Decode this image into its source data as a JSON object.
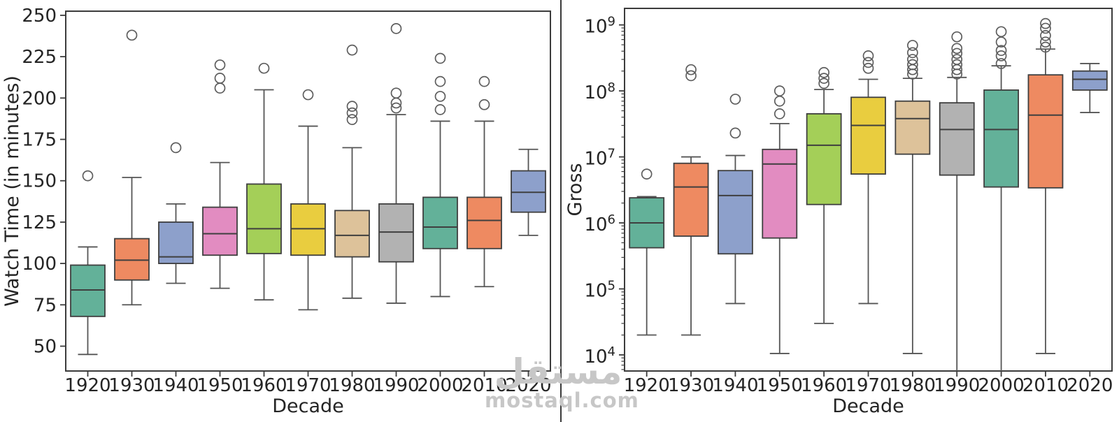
{
  "watermark": {
    "arabic": "مستقل",
    "domain": "mostaql.com"
  },
  "style": {
    "palette": [
      "#63b199",
      "#ee8a61",
      "#8da0cb",
      "#e28cc1",
      "#a4cf58",
      "#e9cd3f",
      "#ddc29a",
      "#b2b2b2",
      "#63b199",
      "#ee8a61",
      "#8da0cb"
    ],
    "box_edge": "#3f3f3f",
    "whisker": "#555555",
    "flier_edge": "#5e5e5e",
    "spine": "#3c3c3c",
    "text": "#242424"
  },
  "chart_data": [
    {
      "type": "boxplot",
      "title": "",
      "xlabel": "Decade",
      "ylabel": "Watch Time (in minutes)",
      "yscale": "linear",
      "ylim": [
        35,
        252.5
      ],
      "yticks": [
        50,
        75,
        100,
        125,
        150,
        175,
        200,
        225,
        250
      ],
      "categories": [
        "1920",
        "1930",
        "1940",
        "1950",
        "1960",
        "1970",
        "1980",
        "1990",
        "2000",
        "2010",
        "2020"
      ],
      "boxes": [
        {
          "whislo": 45,
          "q1": 68,
          "med": 84,
          "q3": 99,
          "whishi": 110,
          "fliers": [
            153
          ]
        },
        {
          "whislo": 75,
          "q1": 90,
          "med": 102,
          "q3": 115,
          "whishi": 152,
          "fliers": [
            238
          ]
        },
        {
          "whislo": 88,
          "q1": 100,
          "med": 104,
          "q3": 125,
          "whishi": 136,
          "fliers": [
            170
          ]
        },
        {
          "whislo": 85,
          "q1": 105,
          "med": 118,
          "q3": 134,
          "whishi": 161,
          "fliers": [
            206,
            212,
            220
          ]
        },
        {
          "whislo": 78,
          "q1": 106,
          "med": 121,
          "q3": 148,
          "whishi": 205,
          "fliers": [
            218
          ]
        },
        {
          "whislo": 72,
          "q1": 105,
          "med": 121,
          "q3": 136,
          "whishi": 183,
          "fliers": [
            202
          ]
        },
        {
          "whislo": 79,
          "q1": 104,
          "med": 117,
          "q3": 132,
          "whishi": 170,
          "fliers": [
            187,
            191,
            195,
            229
          ]
        },
        {
          "whislo": 76,
          "q1": 101,
          "med": 119,
          "q3": 136,
          "whishi": 190,
          "fliers": [
            194,
            197,
            203,
            242
          ]
        },
        {
          "whislo": 80,
          "q1": 109,
          "med": 122,
          "q3": 140,
          "whishi": 186,
          "fliers": [
            193,
            201,
            210,
            224
          ]
        },
        {
          "whislo": 86,
          "q1": 109,
          "med": 126,
          "q3": 140,
          "whishi": 186,
          "fliers": [
            196,
            210
          ]
        },
        {
          "whislo": 117,
          "q1": 131,
          "med": 143,
          "q3": 156,
          "whishi": 169,
          "fliers": []
        }
      ]
    },
    {
      "type": "boxplot",
      "title": "",
      "xlabel": "Decade",
      "ylabel": "Gross",
      "yscale": "log",
      "ylim": [
        5700,
        1780000000.0
      ],
      "yticks": [
        10000.0,
        100000.0,
        1000000.0,
        10000000.0,
        100000000.0,
        1000000000.0
      ],
      "categories": [
        "1920",
        "1930",
        "1940",
        "1950",
        "1960",
        "1970",
        "1980",
        "1990",
        "2000",
        "2010",
        "2020"
      ],
      "boxes": [
        {
          "whislo": 20000.0,
          "q1": 420000.0,
          "med": 1000000.0,
          "q3": 2400000.0,
          "whishi": 2500000.0,
          "fliers": [
            5500000.0
          ]
        },
        {
          "whislo": 20000.0,
          "q1": 630000.0,
          "med": 3500000.0,
          "q3": 8000000.0,
          "whishi": 10000000.0,
          "fliers": [
            170000000.0,
            210000000.0
          ]
        },
        {
          "whislo": 60000.0,
          "q1": 340000.0,
          "med": 2600000.0,
          "q3": 6200000.0,
          "whishi": 10500000.0,
          "fliers": [
            23000000.0,
            75000000.0
          ]
        },
        {
          "whislo": 10500.0,
          "q1": 590000.0,
          "med": 7800000.0,
          "q3": 13000000.0,
          "whishi": 32000000.0,
          "fliers": [
            45000000.0,
            70000000.0,
            100000000.0
          ]
        },
        {
          "whislo": 30000.0,
          "q1": 1900000.0,
          "med": 15000000.0,
          "q3": 45000000.0,
          "whishi": 105000000.0,
          "fliers": [
            130000000.0,
            155000000.0,
            190000000.0
          ]
        },
        {
          "whislo": 60000.0,
          "q1": 5500000.0,
          "med": 30000000.0,
          "q3": 80000000.0,
          "whishi": 150000000.0,
          "fliers": [
            220000000.0,
            270000000.0,
            340000000.0
          ]
        },
        {
          "whislo": 10500.0,
          "q1": 11000000.0,
          "med": 38000000.0,
          "q3": 70000000.0,
          "whishi": 155000000.0,
          "fliers": [
            180000000.0,
            210000000.0,
            250000000.0,
            300000000.0,
            380000000.0,
            490000000.0
          ]
        },
        {
          "whislo": 5600,
          "q1": 5300000.0,
          "med": 26000000.0,
          "q3": 66000000.0,
          "whishi": 160000000.0,
          "fliers": [
            180000000.0,
            210000000.0,
            250000000.0,
            300000000.0,
            370000000.0,
            440000000.0,
            660000000.0
          ]
        },
        {
          "whislo": 5600,
          "q1": 3500000.0,
          "med": 26000000.0,
          "q3": 103000000.0,
          "whishi": 240000000.0,
          "fliers": [
            260000000.0,
            340000000.0,
            410000000.0,
            550000000.0,
            790000000.0
          ]
        },
        {
          "whislo": 10500.0,
          "q1": 3400000.0,
          "med": 43000000.0,
          "q3": 175000000.0,
          "whishi": 430000000.0,
          "fliers": [
            460000000.0,
            550000000.0,
            690000000.0,
            890000000.0,
            1050000000.0
          ]
        },
        {
          "whislo": 47000000.0,
          "q1": 103000000.0,
          "med": 150000000.0,
          "q3": 200000000.0,
          "whishi": 260000000.0,
          "fliers": []
        }
      ]
    }
  ]
}
